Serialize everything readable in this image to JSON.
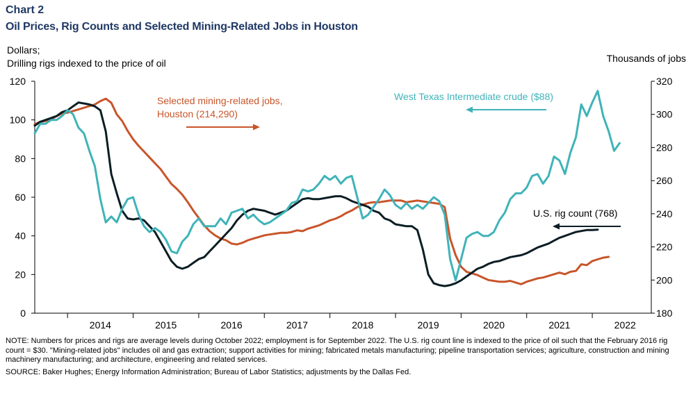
{
  "header": {
    "chart_number": "Chart 2",
    "title": "Oil Prices, Rig Counts and Selected Mining-Related Jobs in Houston"
  },
  "footer": {
    "note": "NOTE: Numbers for prices and rigs are average  levels during October 2022; employment is for September 2022. The U.S. rig count line is indexed to the price of oil such that the February 2016 rig count = $30. \"Mining-related  jobs\" includes oil and gas extraction; support activities for mining; fabricated metals manufacturing; pipeline transportation services; agriculture,  construction and mining machinery manufacturing; and architecture, engineering  and related services.",
    "source": "SOURCE: Baker Hughes; Energy Information  Administration; Bureau of Labor Statistics; adjustments by the Dallas Fed."
  },
  "colors": {
    "wti": "#3fb3b9",
    "rigs": "#0b1d24",
    "jobs": "#c8552a",
    "title": "#1f3864"
  },
  "chart_data": {
    "type": "line",
    "left_axis_label_line1": "Dollars;",
    "left_axis_label_line2": "Drilling rigs indexed to the price of oil",
    "right_axis_label": "Thousands  of jobs",
    "ylim_left": [
      0,
      120
    ],
    "yticks_left": [
      0,
      20,
      40,
      60,
      80,
      100,
      120
    ],
    "ylim_right": [
      180,
      320
    ],
    "yticks_right": [
      180,
      200,
      220,
      240,
      260,
      280,
      300,
      320
    ],
    "x_range": [
      2013.5,
      2022.9
    ],
    "x_tick_labels": [
      "2014",
      "2015",
      "2016",
      "2017",
      "2018",
      "2019",
      "2020",
      "2021",
      "2022"
    ],
    "annotations": {
      "jobs_line1": "Selected mining-related jobs,",
      "jobs_line2": "Houston (214,290)",
      "wti": "West Texas Intermediate  crude ($88)",
      "rigs": "U.S. rig count (768)"
    },
    "series": [
      {
        "name": "West Texas Intermediate crude",
        "axis": "left",
        "start": 2013.5,
        "step": 0.0833333,
        "values": [
          93,
          98,
          98,
          100,
          100,
          102,
          105,
          103,
          96,
          93,
          84,
          76,
          59,
          47,
          50,
          47,
          54,
          59,
          60,
          51,
          45,
          42,
          44,
          42,
          38,
          32,
          31,
          37,
          40,
          46,
          49,
          45,
          45,
          45,
          49,
          46,
          52,
          53,
          54,
          49,
          51,
          48,
          46,
          47,
          49,
          51,
          53,
          57,
          58,
          64,
          63,
          64,
          67,
          71,
          69,
          71,
          67,
          70,
          71,
          60,
          49,
          51,
          55,
          59,
          64,
          61,
          56,
          54,
          57,
          54,
          56,
          54,
          57,
          60,
          58,
          51,
          28,
          17,
          28,
          39,
          41,
          42,
          40,
          40,
          42,
          48,
          52,
          59,
          62,
          62,
          65,
          71,
          72,
          67,
          71,
          81,
          79,
          72,
          83,
          91,
          108,
          102,
          109,
          115,
          102,
          94,
          84,
          88
        ]
      },
      {
        "name": "U.S. rig count",
        "axis": "left",
        "start": 2013.5,
        "step": 0.0833333,
        "values": [
          97,
          99,
          100,
          101,
          102,
          104,
          105,
          107,
          109,
          108.5,
          108,
          107,
          105,
          94,
          72,
          62,
          53,
          49,
          48.5,
          49,
          48,
          45,
          42,
          37,
          32,
          27,
          24,
          23,
          24,
          26,
          28,
          29,
          32,
          35,
          38,
          41,
          44,
          48,
          51,
          53,
          54,
          53.5,
          53,
          52,
          51,
          52,
          53,
          55,
          57,
          59,
          59.5,
          59,
          59,
          59.5,
          60,
          60.5,
          60.5,
          59.5,
          58,
          57,
          56,
          55,
          53,
          52,
          49,
          48,
          46,
          45.5,
          45,
          45,
          43,
          33,
          20,
          15.5,
          14.5,
          14,
          14.5,
          15.5,
          17,
          19,
          21,
          23,
          24,
          25.5,
          26.5,
          27,
          28,
          29,
          29.5,
          30,
          31,
          32.5,
          34,
          35,
          36,
          37.5,
          39,
          40,
          41,
          42,
          42.5,
          43,
          43,
          43.2
        ]
      },
      {
        "name": "Selected mining-related jobs, Houston",
        "axis": "right",
        "start": 2013.5,
        "step": 0.0833333,
        "values": [
          294,
          295.5,
          296,
          297,
          299,
          300.5,
          301,
          302,
          303,
          304,
          305,
          306,
          308,
          309.5,
          307,
          300,
          296,
          290,
          285,
          281,
          277.5,
          274,
          270.5,
          267,
          262.5,
          258,
          255,
          251.5,
          247,
          242,
          237.5,
          233,
          229.5,
          227,
          225,
          224,
          222,
          221.5,
          222.5,
          224,
          225,
          226,
          227,
          227.5,
          228,
          228.5,
          228.5,
          229,
          230,
          229.5,
          231,
          232,
          233,
          234.5,
          236,
          237,
          238.5,
          240.5,
          242,
          244,
          245.5,
          246.5,
          247,
          247,
          247.5,
          248,
          248,
          248,
          247,
          247.5,
          248,
          247.5,
          247,
          246.5,
          246,
          244,
          225,
          215,
          208,
          205,
          204,
          203,
          201.5,
          200,
          199.5,
          199,
          199,
          199.5,
          198.5,
          197.5,
          199,
          200,
          201,
          201.5,
          202.5,
          203.5,
          204.5,
          203.5,
          205,
          205.5,
          209.5,
          209,
          211.5,
          212.5,
          213.5,
          214
        ]
      }
    ]
  }
}
